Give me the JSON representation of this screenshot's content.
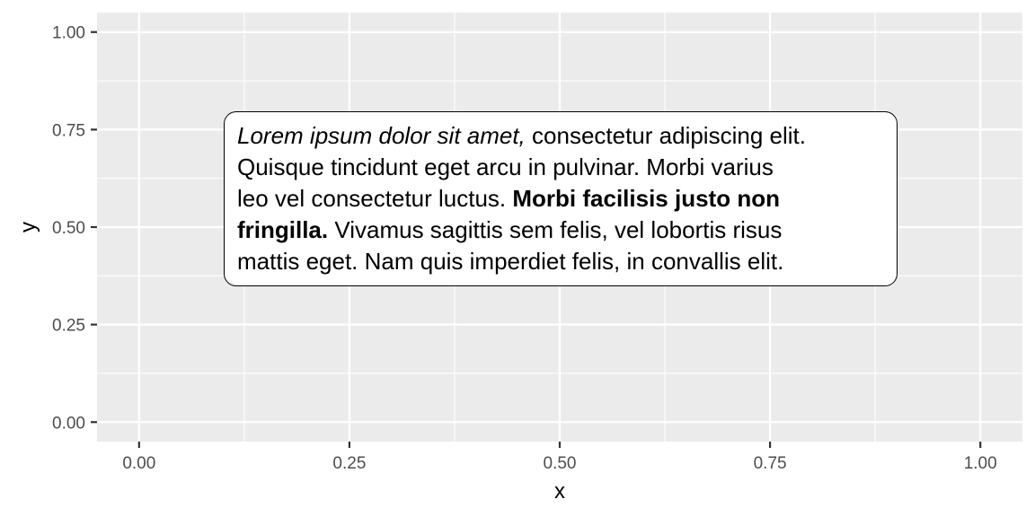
{
  "chart_data": {
    "type": "scatter",
    "title": "",
    "xlabel": "x",
    "ylabel": "y",
    "xlim": [
      0,
      1
    ],
    "ylim": [
      0,
      1
    ],
    "x_ticks": [
      0,
      0.25,
      0.5,
      0.75,
      1
    ],
    "y_ticks": [
      0,
      0.25,
      0.5,
      0.75,
      1
    ],
    "x_tick_labels": [
      "0.00",
      "0.25",
      "0.50",
      "0.75",
      "1.00"
    ],
    "y_tick_labels": [
      "0.00",
      "0.25",
      "0.50",
      "0.75",
      "1.00"
    ],
    "grid": true,
    "series": [],
    "annotations": [
      {
        "type": "textbox",
        "x": 0.1,
        "y": 0.4,
        "lines": [
          [
            {
              "text": "Lorem ipsum dolor sit amet,",
              "style": "italic"
            },
            {
              "text": " consectetur adipiscing elit.",
              "style": "normal"
            }
          ],
          [
            {
              "text": "Quisque tincidunt eget arcu in pulvinar. Morbi varius",
              "style": "normal"
            }
          ],
          [
            {
              "text": "leo vel consectetur luctus. ",
              "style": "normal"
            },
            {
              "text": "Morbi facilisis justo non",
              "style": "bold"
            }
          ],
          [
            {
              "text": "fringilla.",
              "style": "bold"
            },
            {
              "text": " Vivamus sagittis sem felis, vel lobortis risus",
              "style": "normal"
            }
          ],
          [
            {
              "text": "mattis eget. Nam quis imperdiet felis, in convallis elit.",
              "style": "normal"
            }
          ]
        ]
      }
    ]
  }
}
